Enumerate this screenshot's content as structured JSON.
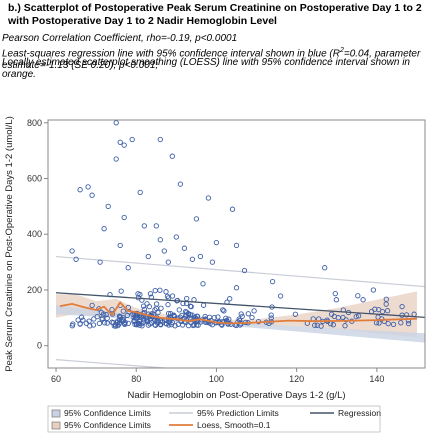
{
  "header": {
    "title": "b.) Scatterplot of Postoperative Peak Serum Creatinine on Postoperative Day 1 to 2 with Postoperative Day 1 to 2 Nadir Hemoglobin Level",
    "note_pearson": "Pearson Correlation Coefficient, rho=-0.19, p<0.0001",
    "note_regression_a": "Least-squares regression line with 95% confidence interval shown in blue (R",
    "note_regression_sup": "2",
    "note_regression_b": "=0.04, parameter estimate=-1.13 (SE 0.20), p<0.001;",
    "note_loess": "Locally estimated scatterplot smoothing (LOESS) line with 95% confidence interval shown in orange."
  },
  "colors": {
    "points": "#3d5fa8",
    "regression": "#44546a",
    "loess": "#e07d3c",
    "loess_band": "#e8cfc0",
    "conf_band": "#c9d3e3",
    "pred_limits": "#c9cdd6",
    "frame": "#888888"
  },
  "legend": {
    "items": [
      {
        "label": "95% Confidence Limits",
        "kind": "swatch-blue"
      },
      {
        "label": "95% Prediction Limits",
        "kind": "line-light"
      },
      {
        "label": "Regression",
        "kind": "line-dark"
      },
      {
        "label": "95% Confidence Limits",
        "kind": "swatch-orange"
      },
      {
        "label": "Loess, Smooth=0.1",
        "kind": "line-orange"
      }
    ]
  },
  "chart_data": {
    "type": "scatter",
    "xlabel": "Nadir Hemoglobin on Post-Operative Days 1-2 (g/L)",
    "ylabel": "Peak Serum Creatinine on Post-Operative Days 1-2 (umol/L)",
    "xlim": [
      58,
      152
    ],
    "ylim": [
      -80,
      810
    ],
    "x_ticks": [
      60,
      80,
      100,
      120,
      140
    ],
    "y_ticks": [
      0,
      200,
      400,
      600,
      800
    ],
    "grid": false,
    "legend_position": "bottom",
    "regression": {
      "intercept": 190,
      "slope": -1.13
    },
    "confidence_band": {
      "x": [
        60,
        80,
        100,
        120,
        140,
        152
      ],
      "lower": [
        113,
        95,
        75,
        51,
        26,
        11
      ],
      "upper": [
        145,
        110,
        85,
        70,
        54,
        45
      ]
    },
    "prediction_limits": {
      "x": [
        60,
        152
      ],
      "lower": [
        -50,
        -152
      ],
      "upper": [
        320,
        212
      ]
    },
    "loess": {
      "x": [
        61,
        64,
        67,
        70,
        72,
        74,
        76,
        78,
        80,
        82,
        84,
        86,
        88,
        90,
        93,
        96,
        100,
        104,
        108,
        112,
        118,
        125,
        132,
        140,
        150
      ],
      "y": [
        142,
        150,
        138,
        128,
        140,
        110,
        155,
        125,
        120,
        112,
        106,
        100,
        97,
        95,
        88,
        95,
        83,
        80,
        82,
        85,
        90,
        88,
        89,
        92,
        97
      ]
    },
    "loess_band": {
      "x": [
        60,
        65,
        70,
        75,
        80,
        85,
        90,
        95,
        100,
        110,
        120,
        130,
        140,
        150
      ],
      "lower": [
        100,
        115,
        105,
        110,
        105,
        96,
        88,
        85,
        78,
        74,
        70,
        60,
        45,
        30
      ],
      "upper": [
        185,
        185,
        160,
        168,
        135,
        118,
        105,
        103,
        92,
        95,
        112,
        135,
        165,
        195
      ]
    },
    "outliers": [
      [
        75,
        800
      ],
      [
        79,
        740
      ],
      [
        76,
        730
      ],
      [
        77,
        720
      ],
      [
        86,
        740
      ],
      [
        89,
        680
      ],
      [
        75,
        670
      ],
      [
        66,
        560
      ],
      [
        68,
        570
      ],
      [
        69,
        540
      ],
      [
        81,
        550
      ],
      [
        91,
        580
      ],
      [
        73,
        500
      ],
      [
        77,
        460
      ],
      [
        82,
        430
      ],
      [
        72,
        420
      ],
      [
        85,
        430
      ],
      [
        98,
        530
      ],
      [
        95,
        455
      ],
      [
        104,
        490
      ],
      [
        94,
        310
      ],
      [
        96,
        320
      ],
      [
        64,
        340
      ],
      [
        65,
        310
      ],
      [
        87,
        340
      ],
      [
        92,
        350
      ],
      [
        88,
        300
      ],
      [
        105,
        360
      ],
      [
        83,
        320
      ],
      [
        71,
        300
      ],
      [
        78,
        280
      ],
      [
        99,
        300
      ],
      [
        127,
        280
      ],
      [
        107,
        270
      ],
      [
        86,
        380
      ],
      [
        100,
        370
      ],
      [
        90,
        390
      ],
      [
        76,
        360
      ],
      [
        114,
        230
      ]
    ],
    "dense_points": {
      "x_range": [
        62,
        150
      ],
      "y_range": [
        40,
        240
      ],
      "count": 300,
      "note_center": [
        85,
        80
      ]
    }
  }
}
